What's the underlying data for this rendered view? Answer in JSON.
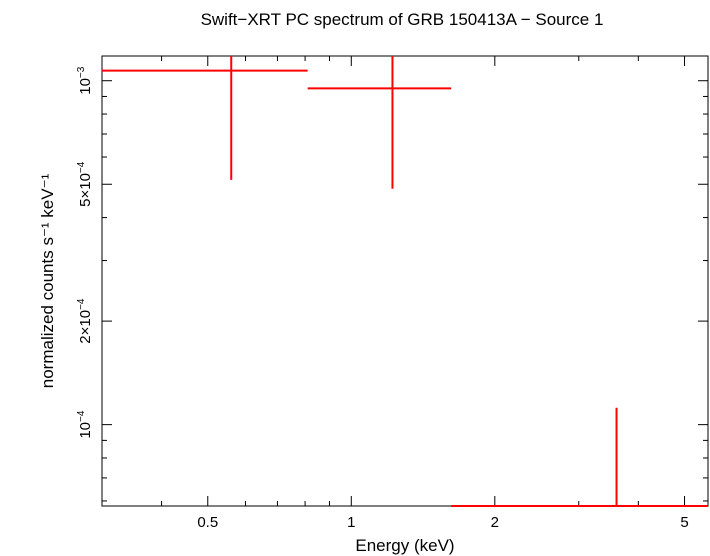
{
  "chart_data": {
    "type": "scatter",
    "title": "Swift−XRT PC spectrum of GRB 150413A − Source 1",
    "xlabel": "Energy (keV)",
    "ylabel": "normalized counts s⁻¹ keV⁻¹",
    "x_scale": "log",
    "y_scale": "log",
    "xlim": [
      0.3,
      5.6
    ],
    "ylim": [
      5.8e-05,
      0.00118
    ],
    "grid": false,
    "color": "#ff0000",
    "x_ticks": [
      {
        "value": 0.5,
        "label": "0.5"
      },
      {
        "value": 1,
        "label": "1"
      },
      {
        "value": 2,
        "label": "2"
      },
      {
        "value": 5,
        "label": "5"
      }
    ],
    "y_ticks": [
      {
        "value": 0.0001,
        "label": "10",
        "exp": "−4"
      },
      {
        "value": 0.0002,
        "label": "2×10",
        "exp": "−4"
      },
      {
        "value": 0.0005,
        "label": "5×10",
        "exp": "−4"
      },
      {
        "value": 0.001,
        "label": "10",
        "exp": "−3"
      }
    ],
    "series": [
      {
        "points": [
          {
            "x": 0.56,
            "x_lo": 0.3,
            "x_hi": 0.81,
            "y": 0.00107,
            "y_lo": 0.000515,
            "y_hi": 0.00118
          },
          {
            "x": 1.22,
            "x_lo": 0.81,
            "x_hi": 1.62,
            "y": 0.00095,
            "y_lo": 0.000485,
            "y_hi": 0.00118
          },
          {
            "x": 3.6,
            "x_lo": 1.62,
            "x_hi": 5.6,
            "y": 5.8e-05,
            "y_lo": 5.8e-05,
            "y_hi": 0.000112
          }
        ]
      }
    ]
  }
}
